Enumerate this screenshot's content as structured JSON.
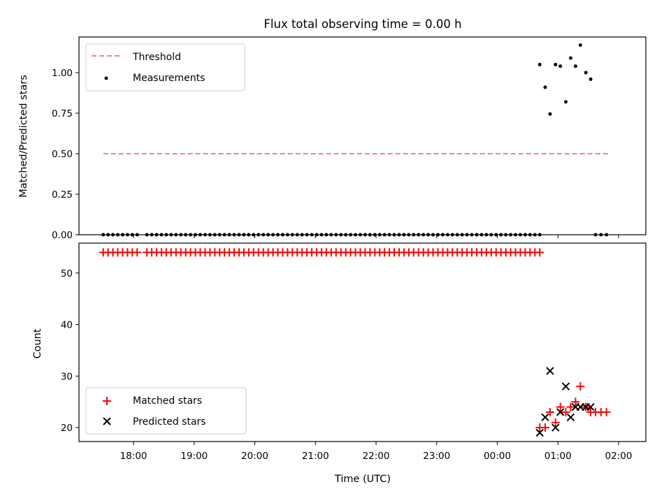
{
  "chart_data": [
    {
      "type": "scatter",
      "title": "Flux total observing time = 0.00 h",
      "ylabel": "Matched/Predicted stars",
      "xlabel": "",
      "xlim": [
        17.1,
        26.45
      ],
      "ylim": [
        0.0,
        1.22
      ],
      "y_ticks": [
        0.0,
        0.25,
        0.5,
        0.75,
        1.0
      ],
      "y_tick_labels": [
        "0.00",
        "0.25",
        "0.50",
        "0.75",
        "1.00"
      ],
      "x_ticks": [
        18,
        19,
        20,
        21,
        22,
        23,
        24,
        25,
        26
      ],
      "legend_position": "top-left",
      "threshold": {
        "name": "Threshold",
        "y": 0.5,
        "x_range": [
          17.5,
          25.83
        ],
        "color": "#ff7f7f",
        "style": "dashed"
      },
      "series": [
        {
          "name": "Measurements",
          "marker": "dot",
          "color": "#000000",
          "x": [
            17.5,
            17.58,
            17.66,
            17.74,
            17.82,
            17.9,
            17.98,
            18.06,
            18.22,
            18.3,
            18.38,
            18.46,
            18.54,
            18.62,
            18.7,
            18.78,
            18.86,
            18.94,
            19.02,
            19.1,
            19.18,
            19.26,
            19.34,
            19.42,
            19.5,
            19.58,
            19.66,
            19.74,
            19.82,
            19.9,
            19.98,
            20.06,
            20.14,
            20.22,
            20.3,
            20.38,
            20.46,
            20.54,
            20.62,
            20.7,
            20.78,
            20.86,
            20.94,
            21.02,
            21.1,
            21.18,
            21.26,
            21.34,
            21.42,
            21.5,
            21.58,
            21.66,
            21.74,
            21.82,
            21.9,
            21.98,
            22.06,
            22.14,
            22.22,
            22.3,
            22.38,
            22.46,
            22.54,
            22.62,
            22.7,
            22.78,
            22.86,
            22.94,
            23.02,
            23.1,
            23.18,
            23.26,
            23.34,
            23.42,
            23.5,
            23.58,
            23.66,
            23.74,
            23.82,
            23.9,
            23.98,
            24.06,
            24.14,
            24.22,
            24.3,
            24.38,
            24.46,
            24.54,
            24.62,
            24.7,
            24.7,
            24.79,
            24.87,
            24.96,
            25.04,
            25.13,
            25.21,
            25.29,
            25.37,
            25.46,
            25.54,
            25.62,
            25.71,
            25.8
          ],
          "y": [
            0,
            0,
            0,
            0,
            0,
            0,
            0,
            0,
            0,
            0,
            0,
            0,
            0,
            0,
            0,
            0,
            0,
            0,
            0,
            0,
            0,
            0,
            0,
            0,
            0,
            0,
            0,
            0,
            0,
            0,
            0,
            0,
            0,
            0,
            0,
            0,
            0,
            0,
            0,
            0,
            0,
            0,
            0,
            0,
            0,
            0,
            0,
            0,
            0,
            0,
            0,
            0,
            0,
            0,
            0,
            0,
            0,
            0,
            0,
            0,
            0,
            0,
            0,
            0,
            0,
            0,
            0,
            0,
            0,
            0,
            0,
            0,
            0,
            0,
            0,
            0,
            0,
            0,
            0,
            0,
            0,
            0,
            0,
            0,
            0,
            0,
            0,
            0,
            0,
            0,
            1.05,
            0.91,
            0.745,
            1.05,
            1.04,
            0.82,
            1.09,
            1.04,
            1.17,
            1.0,
            0.96,
            0,
            0,
            0
          ]
        }
      ]
    },
    {
      "type": "scatter",
      "title": "",
      "ylabel": "Count",
      "xlabel": "Time (UTC)",
      "xlim": [
        17.1,
        26.45
      ],
      "ylim": [
        17.3,
        55.8
      ],
      "y_ticks": [
        20,
        30,
        40,
        50
      ],
      "y_tick_labels": [
        "20",
        "30",
        "40",
        "50"
      ],
      "x_ticks": [
        18,
        19,
        20,
        21,
        22,
        23,
        24,
        25,
        26
      ],
      "x_tick_labels": [
        "18:00",
        "19:00",
        "20:00",
        "21:00",
        "22:00",
        "23:00",
        "00:00",
        "01:00",
        "02:00"
      ],
      "legend_position": "bottom-left",
      "series": [
        {
          "name": "Matched stars",
          "marker": "plus",
          "color": "#ff0000",
          "x": [
            17.5,
            17.58,
            17.66,
            17.74,
            17.82,
            17.9,
            17.98,
            18.06,
            18.22,
            18.3,
            18.38,
            18.46,
            18.54,
            18.62,
            18.7,
            18.78,
            18.86,
            18.94,
            19.02,
            19.1,
            19.18,
            19.26,
            19.34,
            19.42,
            19.5,
            19.58,
            19.66,
            19.74,
            19.82,
            19.9,
            19.98,
            20.06,
            20.14,
            20.22,
            20.3,
            20.38,
            20.46,
            20.54,
            20.62,
            20.7,
            20.78,
            20.86,
            20.94,
            21.02,
            21.1,
            21.18,
            21.26,
            21.34,
            21.42,
            21.5,
            21.58,
            21.66,
            21.74,
            21.82,
            21.9,
            21.98,
            22.06,
            22.14,
            22.22,
            22.3,
            22.38,
            22.46,
            22.54,
            22.62,
            22.7,
            22.78,
            22.86,
            22.94,
            23.02,
            23.1,
            23.18,
            23.26,
            23.34,
            23.42,
            23.5,
            23.58,
            23.66,
            23.74,
            23.82,
            23.9,
            23.98,
            24.06,
            24.14,
            24.22,
            24.3,
            24.38,
            24.46,
            24.54,
            24.62,
            24.7,
            24.7,
            24.79,
            24.87,
            24.96,
            25.04,
            25.13,
            25.21,
            25.29,
            25.37,
            25.46,
            25.54,
            25.62,
            25.71,
            25.8
          ],
          "y": [
            54,
            54,
            54,
            54,
            54,
            54,
            54,
            54,
            54,
            54,
            54,
            54,
            54,
            54,
            54,
            54,
            54,
            54,
            54,
            54,
            54,
            54,
            54,
            54,
            54,
            54,
            54,
            54,
            54,
            54,
            54,
            54,
            54,
            54,
            54,
            54,
            54,
            54,
            54,
            54,
            54,
            54,
            54,
            54,
            54,
            54,
            54,
            54,
            54,
            54,
            54,
            54,
            54,
            54,
            54,
            54,
            54,
            54,
            54,
            54,
            54,
            54,
            54,
            54,
            54,
            54,
            54,
            54,
            54,
            54,
            54,
            54,
            54,
            54,
            54,
            54,
            54,
            54,
            54,
            54,
            54,
            54,
            54,
            54,
            54,
            54,
            54,
            54,
            54,
            54,
            20,
            20,
            23,
            21,
            24,
            23,
            24,
            25,
            28,
            24,
            23,
            23,
            23,
            23
          ]
        },
        {
          "name": "Predicted stars",
          "marker": "x",
          "color": "#000000",
          "x": [
            24.7,
            24.79,
            24.87,
            24.96,
            25.04,
            25.13,
            25.21,
            25.29,
            25.37,
            25.46,
            25.54
          ],
          "y": [
            19,
            22,
            31,
            20,
            23,
            28,
            22,
            24,
            24,
            24,
            24
          ]
        }
      ]
    }
  ]
}
